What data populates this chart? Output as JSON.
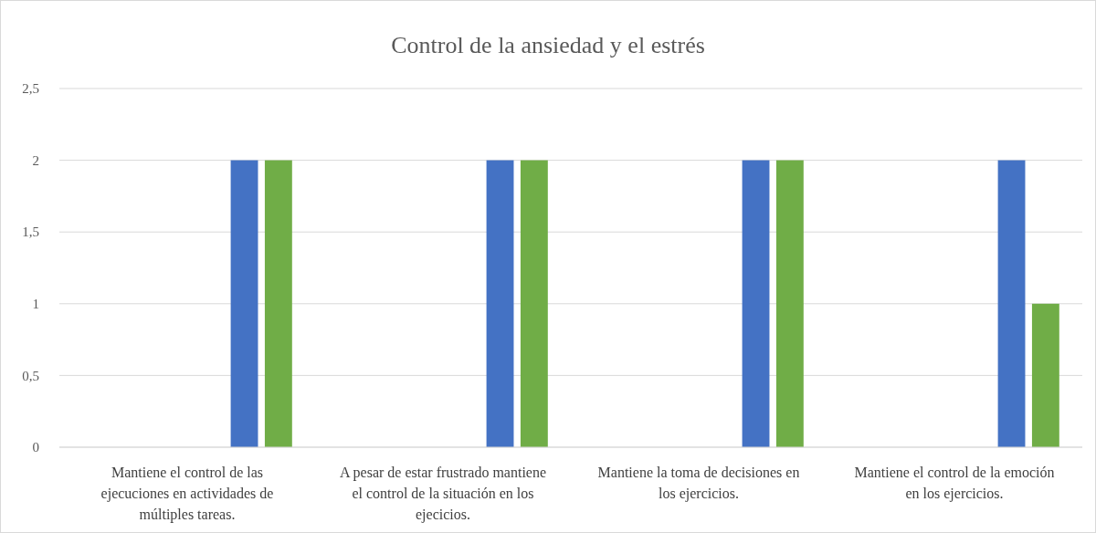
{
  "chart_data": {
    "type": "bar",
    "title": "Control de la ansiedad y el estrés",
    "categories": [
      "Mantiene el control de las ejecuciones en actividades de múltiples tareas.",
      "A pesar de estar frustrado mantiene el control de la situación en los ejecicios.",
      "Mantiene la toma de decisiones en los ejercicios.",
      "Mantiene el control de la emoción en los ejercicios."
    ],
    "series": [
      {
        "color": "#4472c4",
        "values": [
          2,
          2,
          2,
          2
        ]
      },
      {
        "color": "#70ad47",
        "values": [
          2,
          2,
          2,
          1
        ]
      }
    ],
    "ylim": [
      0,
      2.5
    ],
    "yticks": [
      0,
      {
        "value": 0.5,
        "label": "0,5"
      },
      1,
      {
        "value": 1.5,
        "label": "1,5"
      },
      2,
      {
        "value": 2.5,
        "label": "2,5"
      }
    ],
    "grid": "y"
  }
}
